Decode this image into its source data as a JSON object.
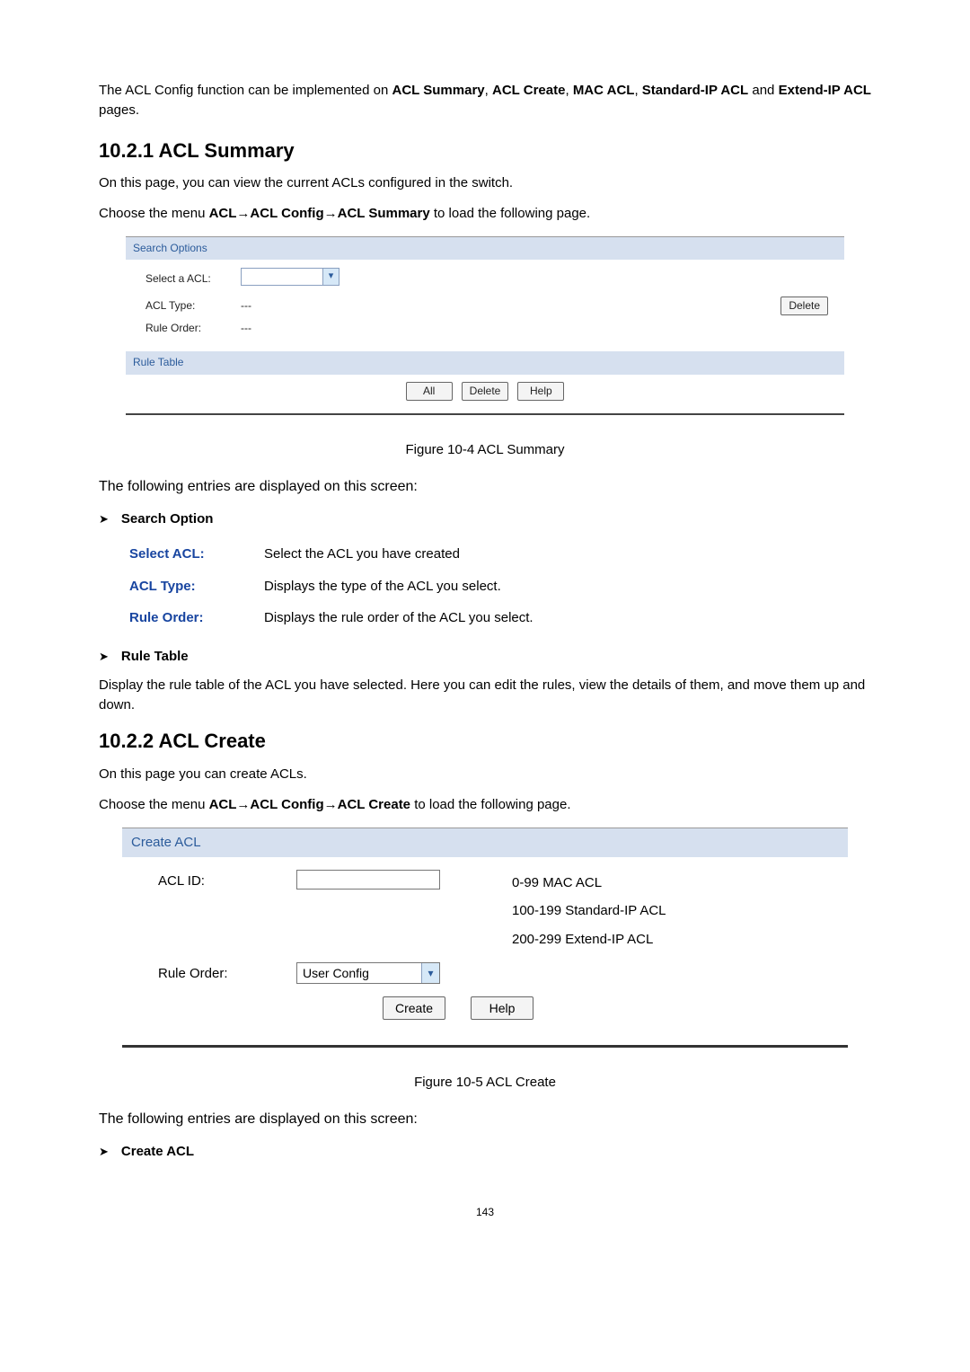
{
  "intro": {
    "prefix": "The ACL Config function can be implemented on ",
    "b1": "ACL Summary",
    "sep1": ", ",
    "b2": "ACL Create",
    "sep2": ", ",
    "b3": "MAC ACL",
    "sep3": ", ",
    "b4": "Standard-IP ACL",
    "and": " and ",
    "b5": "Extend-IP ACL",
    "suffix": " pages."
  },
  "s1": {
    "heading": "10.2.1  ACL Summary",
    "p1": "On this page, you can view the current ACLs configured in the switch.",
    "menu_prefix": "Choose the menu ",
    "menu_bold": "ACL→ACL Config→ACL Summary",
    "menu_suffix": " to load the following page.",
    "fig": {
      "search_options": "Search Options",
      "select_acl_lbl": "Select a ACL:",
      "acl_type_lbl": "ACL Type:",
      "acl_type_val": "---",
      "rule_order_lbl": "Rule Order:",
      "rule_order_val": "---",
      "delete_btn": "Delete",
      "rule_table_hdr": "Rule Table",
      "all_btn": "All",
      "delete2_btn": "Delete",
      "help_btn": "Help"
    },
    "caption": "Figure 10-4 ACL Summary",
    "entries_intro": "The following entries are displayed on this screen:",
    "search_option_lbl": "Search Option",
    "defs": {
      "select_acl_term": "Select ACL:",
      "select_acl_desc": "Select the ACL you have created",
      "acl_type_term": "ACL Type:",
      "acl_type_desc": "Displays the type of the ACL you select.",
      "rule_order_term": "Rule Order:",
      "rule_order_desc": "Displays the rule order of the ACL you select."
    },
    "rule_table_lbl": "Rule Table",
    "rule_table_desc": "Display the rule table of the ACL you have selected. Here you can edit the rules, view the details of them, and move them up and down."
  },
  "s2": {
    "heading": "10.2.2  ACL Create",
    "p1": "On this page you can create ACLs.",
    "menu_prefix": "Choose the menu ",
    "menu_bold": "ACL→ACL Config→ACL Create",
    "menu_suffix": " to load the following page.",
    "fig": {
      "create_acl_hdr": "Create ACL",
      "acl_id_lbl": "ACL ID:",
      "hint1": "0-99 MAC ACL",
      "hint2": "100-199 Standard-IP ACL",
      "hint3": "200-299 Extend-IP ACL",
      "rule_order_lbl": "Rule Order:",
      "rule_order_val": "User Config",
      "create_btn": "Create",
      "help_btn": "Help"
    },
    "caption": "Figure 10-5 ACL Create",
    "entries_intro": "The following entries are displayed on this screen:",
    "create_acl_lbl": "Create ACL"
  },
  "page_num": "143",
  "colors": {
    "panel_header_bg": "#d6e0ef",
    "panel_header_text": "#2b5b9b",
    "term_color": "#1845a0"
  }
}
